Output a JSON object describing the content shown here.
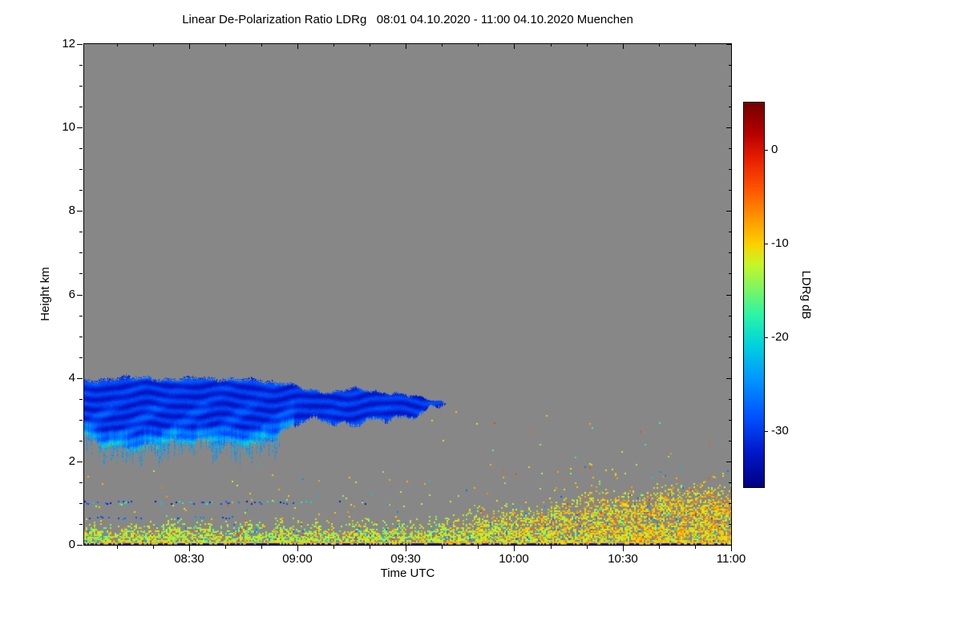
{
  "chart_data": {
    "type": "heatmap",
    "title": "Linear De-Polarization Ratio LDRg   08:01 04.10.2020 - 11:00 04.10.2020 Muenchen",
    "station": "Muenchen",
    "time_start": "08:01 04.10.2020",
    "time_end": "11:00 04.10.2020",
    "axes": {
      "x": {
        "label": "Time UTC",
        "start": "08:01",
        "end": "11:00",
        "tick_labels": [
          "08:30",
          "09:00",
          "09:30",
          "10:00",
          "10:30",
          "11:00"
        ],
        "minor_step_min": 10
      },
      "y": {
        "label": "Height km",
        "min": 0,
        "max": 12,
        "tick_labels": [
          "0",
          "2",
          "4",
          "6",
          "8",
          "10",
          "12"
        ],
        "tick_values": [
          0,
          2,
          4,
          6,
          8,
          10,
          12
        ],
        "minor_step_km": 0.5
      }
    },
    "colorbar": {
      "label": "LDRg dB",
      "vmin": -36,
      "vmax": 5,
      "tick_labels": [
        "0",
        "-10",
        "-20",
        "-30"
      ],
      "tick_values": [
        0,
        -10,
        -20,
        -30
      ],
      "stops": [
        {
          "t": 0.0,
          "c": "#000082"
        },
        {
          "t": 0.09,
          "c": "#0018c8"
        },
        {
          "t": 0.18,
          "c": "#0050ff"
        },
        {
          "t": 0.28,
          "c": "#0096ff"
        },
        {
          "t": 0.37,
          "c": "#00d2dc"
        },
        {
          "t": 0.45,
          "c": "#2df5a5"
        },
        {
          "t": 0.52,
          "c": "#82f55f"
        },
        {
          "t": 0.58,
          "c": "#c8f528"
        },
        {
          "t": 0.63,
          "c": "#fad200"
        },
        {
          "t": 0.7,
          "c": "#ff9600"
        },
        {
          "t": 0.78,
          "c": "#ff5000"
        },
        {
          "t": 0.855,
          "c": "#e61e00"
        },
        {
          "t": 0.92,
          "c": "#b40000"
        },
        {
          "t": 1.0,
          "c": "#730000"
        }
      ]
    },
    "no_data_color": "#878787",
    "features": {
      "no_data_meaning": "uniform gray field = no signal / below detection threshold",
      "cloud_layer": {
        "description": "Elongated cloud layer with very low depolarization (deep blue, about -33 to -28 dB) and cyan fringes (about -26 to -20 dB) along its ragged base with virga streaks on the left part; tapers to a point near 09:41",
        "time_start": "08:01",
        "time_end": "09:41",
        "base_km_range": [
          2.2,
          3.4
        ],
        "top_km_range": [
          4.1,
          3.4
        ],
        "body_ldr_db": [
          -33,
          -28
        ],
        "fringe_ldr_db": [
          -26,
          -20
        ]
      },
      "boundary_layer": {
        "description": "Speckled yellow-green near-surface layer across the whole record; deepens and densifies after about 09:30, with scattered pixels up to ~1.8 km on the right and rare orange/red and cyan speckles",
        "time_start": "08:01",
        "time_end": "11:00",
        "dense_top_km_left": 0.45,
        "dense_top_km_right": 0.9,
        "speckle_top_km_right": 1.8,
        "typical_ldr_db": [
          -18,
          -8
        ]
      },
      "elevated_dot_rows": [
        {
          "height_km": 1.02,
          "time_start": "08:01",
          "time_end": "09:19",
          "ldr_db": [
            -33,
            -17
          ]
        },
        {
          "height_km": 0.66,
          "time_start": "08:01",
          "time_end": "08:43",
          "ldr_db": [
            -31,
            -24
          ]
        }
      ],
      "surface_line": {
        "height_km": 0.04,
        "ldr_db": [
          -34,
          -9
        ]
      },
      "isolated_specks": {
        "description": "A few isolated colored pixels between 2 and 3.2 km after ~09:35",
        "ldr_db": [
          -19,
          -3
        ]
      }
    }
  }
}
